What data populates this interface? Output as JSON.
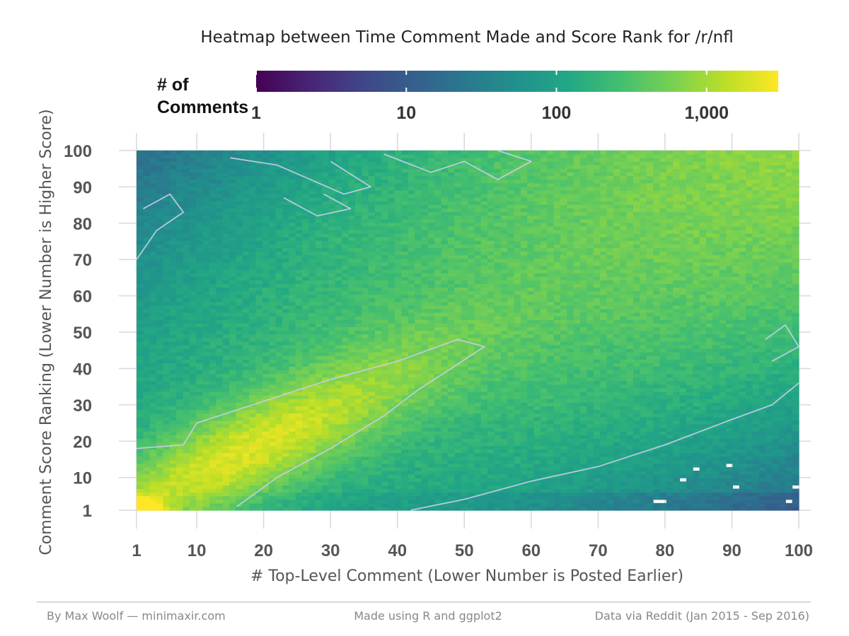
{
  "chart_data": {
    "type": "heatmap",
    "title": "Heatmap between Time Comment Made and Score Rank for /r/nfl",
    "xlabel": "# Top-Level Comment (Lower Number is Posted Earlier)",
    "ylabel": "Comment Score Ranking (Lower Number is Higher Score)",
    "x_ticks": [
      1,
      10,
      20,
      30,
      40,
      50,
      60,
      70,
      80,
      90,
      100
    ],
    "y_ticks": [
      1,
      10,
      20,
      30,
      40,
      50,
      60,
      70,
      80,
      90,
      100
    ],
    "xlim": [
      1,
      100
    ],
    "ylim": [
      1,
      100
    ],
    "grid": true,
    "color_scale": {
      "palette": "viridis",
      "scale": "log10",
      "title_line1": "# of",
      "title_line2": "Comments",
      "ticks": [
        1,
        10,
        100,
        1000
      ],
      "tick_labels": [
        "1",
        "10",
        "100",
        "1,000"
      ],
      "max": 3000,
      "position": "top"
    },
    "value_pattern": {
      "peak_cell": [
        1,
        1
      ],
      "peak_count": 3000,
      "high_density_band": "diagonal ridge from (1,1) to about (50,48)",
      "low_density_region": "bottom-right corner (x 70-100, y 1-15)",
      "secondary_ridge": "diagonal from (1,100) to (100,1) region edges",
      "contour_levels": [
        10,
        100
      ]
    }
  },
  "footer": {
    "left": "By Max Woolf — minimaxir.com",
    "center": "Made using R and ggplot2",
    "right": "Data via Reddit (Jan 2015 - Sep 2016)"
  }
}
